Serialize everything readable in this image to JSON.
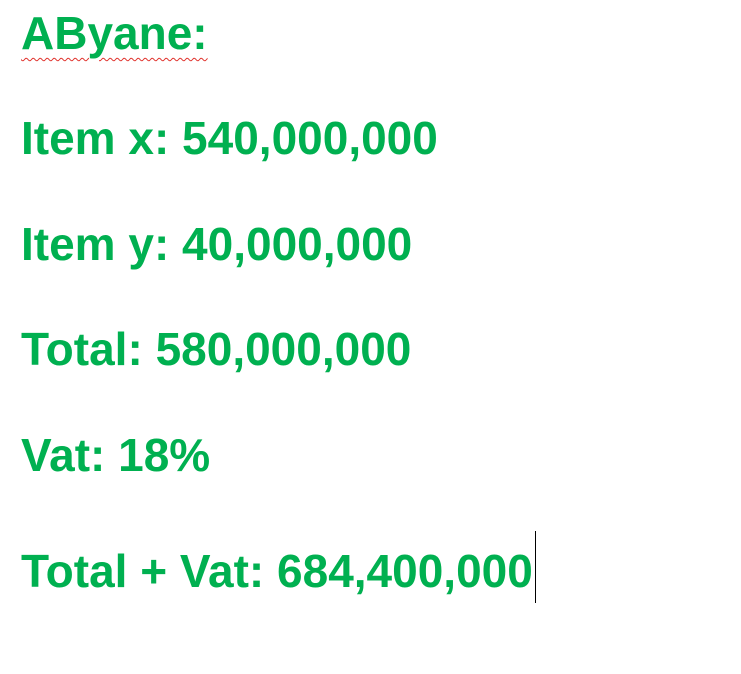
{
  "document": {
    "heading": "AByane:",
    "lines": [
      "Item x: 540,000,000",
      "Item y: 40,000,000",
      "Total: 580,000,000",
      "Vat: 18%",
      "Total + Vat: 684,400,000"
    ]
  },
  "colors": {
    "text": "#00b050",
    "spellcheck_underline": "#e0302a",
    "caret": "#000000"
  }
}
